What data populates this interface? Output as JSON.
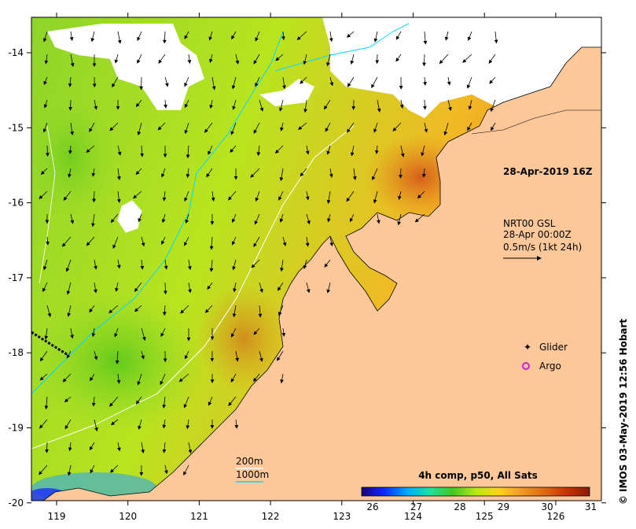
{
  "map": {
    "timestamp": "28-Apr-2019 16Z",
    "current_label": {
      "line1": "NRT00 GSL",
      "line2": "28-Apr 00:00Z",
      "line3": "0.5m/s (1kt 24h)"
    },
    "legend": {
      "glider": "Glider",
      "argo": "Argo"
    },
    "contours": {
      "c200": "200m",
      "c1000": "1000m"
    },
    "colorbar": {
      "title": "4h comp, p50, All Sats",
      "ticks": [
        "26",
        "27",
        "28",
        "29",
        "30",
        "31"
      ],
      "colors": [
        "#1b007a",
        "#0a2cff",
        "#00a8ff",
        "#22e0a0",
        "#44c81c",
        "#b4ea14",
        "#ffd21e",
        "#f09a22",
        "#e06a10",
        "#c83200",
        "#8a1a00"
      ]
    },
    "axes": {
      "x_ticks": [
        "119",
        "120",
        "121",
        "122",
        "123",
        "124",
        "125",
        "126"
      ],
      "y_ticks": [
        "-14",
        "-15",
        "-16",
        "-17",
        "-18",
        "-19",
        "-20"
      ]
    },
    "land_color": "#fcc89a",
    "copyright": "© IMOS 03-May-2019 12:56 Hobart"
  }
}
